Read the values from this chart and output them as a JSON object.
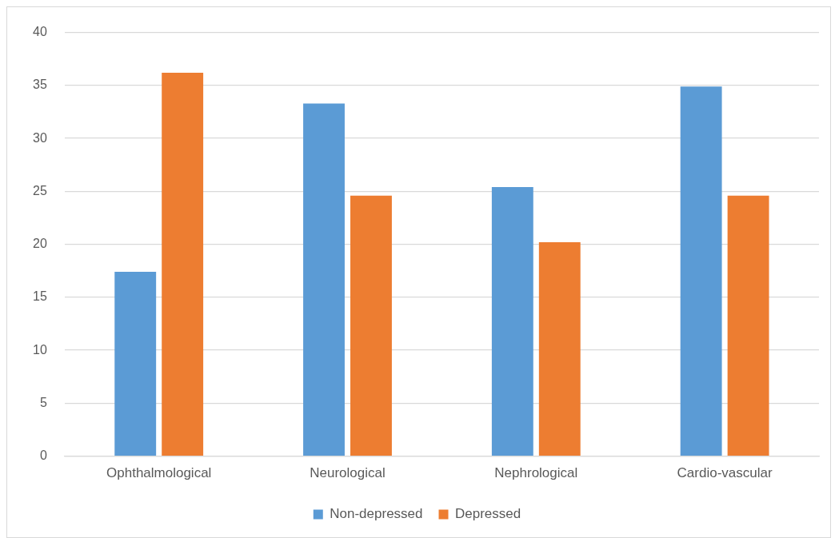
{
  "chart_data": {
    "type": "bar",
    "categories": [
      "Ophthalmological",
      "Neurological",
      "Nephrological",
      "Cardio-vascular"
    ],
    "series": [
      {
        "name": "Non-depressed",
        "color": "#5b9bd5",
        "values": [
          17.4,
          33.3,
          25.4,
          34.9
        ]
      },
      {
        "name": "Depressed",
        "color": "#ed7d31",
        "values": [
          36.2,
          24.6,
          20.2,
          24.6
        ]
      }
    ],
    "ylim": [
      0,
      40
    ],
    "yticks": [
      0,
      5,
      10,
      15,
      20,
      25,
      30,
      35,
      40
    ],
    "grid": "y",
    "legend": "bottom"
  }
}
